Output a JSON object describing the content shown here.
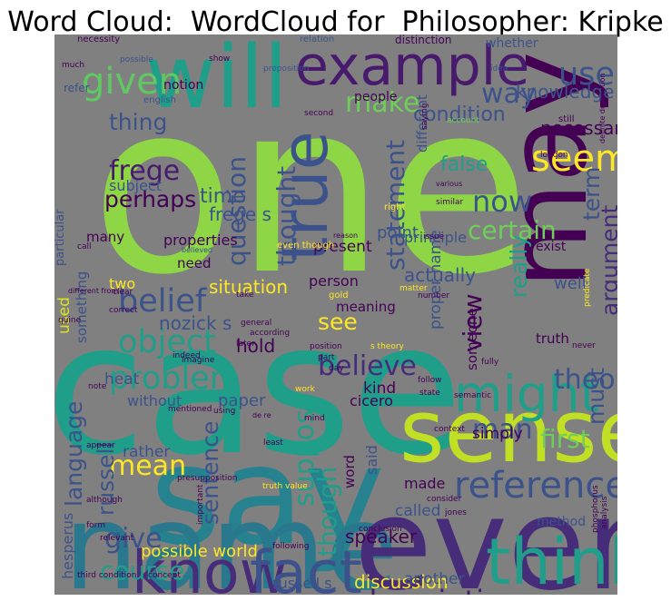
{
  "title": "Word Cloud:  WordCloud for  Philosopher: Kripke",
  "palette": {
    "background": "#808080",
    "lime": "#8ed645",
    "teal": "#1f9e89",
    "dark_purple": "#472c7a",
    "blue": "#3b528b",
    "yellow": "#dde318",
    "light_green": "#6ece58"
  },
  "words": [
    {
      "text": "one",
      "color": "#8ed645"
    },
    {
      "text": "case",
      "color": "#1f9e89"
    },
    {
      "text": "say",
      "color": "#26828e"
    },
    {
      "text": "name",
      "color": "#2a788e"
    },
    {
      "text": "even",
      "color": "#472c7a"
    },
    {
      "text": "sense",
      "color": "#c0df25"
    },
    {
      "text": "will",
      "color": "#1f9e89"
    },
    {
      "text": "example",
      "color": "#481a6c"
    },
    {
      "text": "may",
      "color": "#440154"
    },
    {
      "text": "know",
      "color": "#472c7a"
    },
    {
      "text": "fact",
      "color": "#3b528b"
    },
    {
      "text": "think",
      "color": "#1f9e89"
    },
    {
      "text": "true",
      "color": "#3b528b"
    },
    {
      "text": "might",
      "color": "#1f9e89"
    },
    {
      "text": "reference",
      "color": "#3b528b"
    },
    {
      "text": "given",
      "color": "#5ec962"
    },
    {
      "text": "use",
      "color": "#3b528b"
    },
    {
      "text": "way",
      "color": "#3b528b"
    },
    {
      "text": "seem",
      "color": "#fde725"
    },
    {
      "text": "make",
      "color": "#6ece58"
    },
    {
      "text": "thing",
      "color": "#3b528b"
    },
    {
      "text": "frege",
      "color": "#481a6c"
    },
    {
      "text": "question",
      "color": "#3b528b"
    },
    {
      "text": "thought",
      "color": "#3b528b"
    },
    {
      "text": "statement",
      "color": "#3b528b"
    },
    {
      "text": "now",
      "color": "#3b528b"
    },
    {
      "text": "certain",
      "color": "#6ece58"
    },
    {
      "text": "really",
      "color": "#1f9e89"
    },
    {
      "text": "argument",
      "color": "#472c7a"
    },
    {
      "text": "term",
      "color": "#3b528b"
    },
    {
      "text": "perhaps",
      "color": "#440154"
    },
    {
      "text": "belief",
      "color": "#3b528b"
    },
    {
      "text": "object",
      "color": "#1f9e89"
    },
    {
      "text": "problem",
      "color": "#1f9e89"
    },
    {
      "text": "see",
      "color": "#fde725"
    },
    {
      "text": "view",
      "color": "#440154"
    },
    {
      "text": "theory",
      "color": "#3b528b"
    },
    {
      "text": "believe",
      "color": "#472c7a"
    },
    {
      "text": "language",
      "color": "#3b528b"
    },
    {
      "text": "sentence",
      "color": "#3b528b"
    },
    {
      "text": "suppose",
      "color": "#1f9e89"
    },
    {
      "text": "must",
      "color": "#3b528b"
    },
    {
      "text": "mean",
      "color": "#fde725"
    },
    {
      "text": "russell",
      "color": "#3b528b"
    },
    {
      "text": "though",
      "color": "#1f9e89"
    },
    {
      "text": "description",
      "color": "#481a6c"
    },
    {
      "text": "man",
      "color": "#3b528b"
    },
    {
      "text": "first",
      "color": "#6ece58"
    },
    {
      "text": "give",
      "color": "#3b528b"
    },
    {
      "text": "course",
      "color": "#1f9e89"
    },
    {
      "text": "knowledge",
      "color": "#3b528b"
    },
    {
      "text": "condition",
      "color": "#3b528b"
    },
    {
      "text": "necessary",
      "color": "#440154"
    },
    {
      "text": "false",
      "color": "#1f9e89"
    },
    {
      "text": "situation",
      "color": "#fde725"
    },
    {
      "text": "two",
      "color": "#fde725"
    },
    {
      "text": "nozick s",
      "color": "#3b528b"
    },
    {
      "text": "hold",
      "color": "#440154"
    },
    {
      "text": "speaker",
      "color": "#440154"
    },
    {
      "text": "possible world",
      "color": "#fde725"
    },
    {
      "text": "discussion",
      "color": "#fde725"
    },
    {
      "text": "used",
      "color": "#dde318"
    },
    {
      "text": "something",
      "color": "#3b528b"
    },
    {
      "text": "particular",
      "color": "#3b528b"
    },
    {
      "text": "subject",
      "color": "#3b528b"
    },
    {
      "text": "time",
      "color": "#3b528b"
    },
    {
      "text": "frege s",
      "color": "#3b528b"
    },
    {
      "text": "properties",
      "color": "#440154"
    },
    {
      "text": "many",
      "color": "#440154"
    },
    {
      "text": "need",
      "color": "#440154"
    },
    {
      "text": "present",
      "color": "#440154"
    },
    {
      "text": "person",
      "color": "#440154"
    },
    {
      "text": "point",
      "color": "#3b528b"
    },
    {
      "text": "principle",
      "color": "#3b528b"
    },
    {
      "text": "actually",
      "color": "#3b528b"
    },
    {
      "text": "meaning",
      "color": "#440154"
    },
    {
      "text": "someone",
      "color": "#440154"
    },
    {
      "text": "proper name",
      "color": "#3b528b"
    },
    {
      "text": "paper",
      "color": "#3b528b"
    },
    {
      "text": "without",
      "color": "#3b528b"
    },
    {
      "text": "heat",
      "color": "#3b528b"
    },
    {
      "text": "rather",
      "color": "#3b528b"
    },
    {
      "text": "cicero",
      "color": "#440154"
    },
    {
      "text": "kind",
      "color": "#440154"
    },
    {
      "text": "said",
      "color": "#3b528b"
    },
    {
      "text": "simply",
      "color": "#440154"
    },
    {
      "text": "word",
      "color": "#440154"
    },
    {
      "text": "made",
      "color": "#440154"
    },
    {
      "text": "called",
      "color": "#3b528b"
    },
    {
      "text": "another",
      "color": "#3b528b"
    },
    {
      "text": "russell s",
      "color": "#3b528b"
    },
    {
      "text": "hesperus",
      "color": "#3b528b"
    },
    {
      "text": "well",
      "color": "#3b528b"
    },
    {
      "text": "truth",
      "color": "#440154"
    },
    {
      "text": "exist",
      "color": "#440154"
    },
    {
      "text": "notion",
      "color": "#440154"
    },
    {
      "text": "people",
      "color": "#440154"
    },
    {
      "text": "whether",
      "color": "#3b528b"
    },
    {
      "text": "different",
      "color": "#3b528b"
    },
    {
      "text": "necessity",
      "color": "#440154"
    },
    {
      "text": "relation",
      "color": "#3b528b"
    },
    {
      "text": "distinction",
      "color": "#440154"
    },
    {
      "text": "show",
      "color": "#440154"
    },
    {
      "text": "possible",
      "color": "#3b528b"
    },
    {
      "text": "proposition",
      "color": "#3b528b"
    },
    {
      "text": "account",
      "color": "#6ece58"
    },
    {
      "text": "london",
      "color": "#440154"
    },
    {
      "text": "similar",
      "color": "#440154"
    },
    {
      "text": "second",
      "color": "#440154"
    },
    {
      "text": "right",
      "color": "#fde725"
    },
    {
      "text": "issue",
      "color": "#440154"
    },
    {
      "text": "reason",
      "color": "#440154"
    },
    {
      "text": "believed",
      "color": "#3b528b"
    },
    {
      "text": "even though",
      "color": "#fde725"
    },
    {
      "text": "take",
      "color": "#440154"
    },
    {
      "text": "gold",
      "color": "#fde725"
    },
    {
      "text": "matter",
      "color": "#fde725"
    },
    {
      "text": "number",
      "color": "#440154"
    },
    {
      "text": "predicate",
      "color": "#fde725"
    },
    {
      "text": "clear",
      "color": "#440154"
    },
    {
      "text": "correct",
      "color": "#440154"
    },
    {
      "text": "quine",
      "color": "#440154"
    },
    {
      "text": "general",
      "color": "#440154"
    },
    {
      "text": "according",
      "color": "#440154"
    },
    {
      "text": "later",
      "color": "#440154"
    },
    {
      "text": "indeed",
      "color": "#440154"
    },
    {
      "text": "imagine",
      "color": "#440154"
    },
    {
      "text": "position",
      "color": "#440154"
    },
    {
      "text": "s theory",
      "color": "#fde725"
    },
    {
      "text": "never",
      "color": "#440154"
    },
    {
      "text": "note",
      "color": "#440154"
    },
    {
      "text": "mentioned",
      "color": "#440154"
    },
    {
      "text": "using",
      "color": "#440154"
    },
    {
      "text": "work",
      "color": "#fde725"
    },
    {
      "text": "day",
      "color": "#440154"
    },
    {
      "text": "mind",
      "color": "#440154"
    },
    {
      "text": "follow",
      "color": "#440154"
    },
    {
      "text": "state",
      "color": "#440154"
    },
    {
      "text": "semantic",
      "color": "#440154"
    },
    {
      "text": "least",
      "color": "#440154"
    },
    {
      "text": "appear",
      "color": "#440154"
    },
    {
      "text": "context",
      "color": "#440154"
    },
    {
      "text": "although",
      "color": "#440154"
    },
    {
      "text": "presupposition",
      "color": "#440154"
    },
    {
      "text": "important",
      "color": "#440154"
    },
    {
      "text": "truth value",
      "color": "#fde725"
    },
    {
      "text": "relevant",
      "color": "#440154"
    },
    {
      "text": "form",
      "color": "#440154"
    },
    {
      "text": "consider",
      "color": "#440154"
    },
    {
      "text": "jones",
      "color": "#440154"
    },
    {
      "text": "phosphorus",
      "color": "#440154"
    },
    {
      "text": "analysis",
      "color": "#440154"
    },
    {
      "text": "following",
      "color": "#440154"
    },
    {
      "text": "conclusion",
      "color": "#440154"
    },
    {
      "text": "third condition",
      "color": "#440154"
    },
    {
      "text": "concept",
      "color": "#440154"
    },
    {
      "text": "method",
      "color": "#3b528b"
    },
    {
      "text": "refer",
      "color": "#3b528b"
    },
    {
      "text": "much",
      "color": "#440154"
    },
    {
      "text": "english",
      "color": "#3b528b"
    },
    {
      "text": "idea",
      "color": "#3b528b"
    },
    {
      "text": "definite description",
      "color": "#440154"
    },
    {
      "text": "de re",
      "color": "#440154"
    },
    {
      "text": "fully",
      "color": "#440154"
    },
    {
      "text": "part",
      "color": "#440154"
    },
    {
      "text": "various",
      "color": "#440154"
    },
    {
      "text": "still",
      "color": "#440154"
    },
    {
      "text": "call",
      "color": "#440154"
    },
    {
      "text": "saying",
      "color": "#440154"
    },
    {
      "text": "different from",
      "color": "#440154"
    }
  ]
}
